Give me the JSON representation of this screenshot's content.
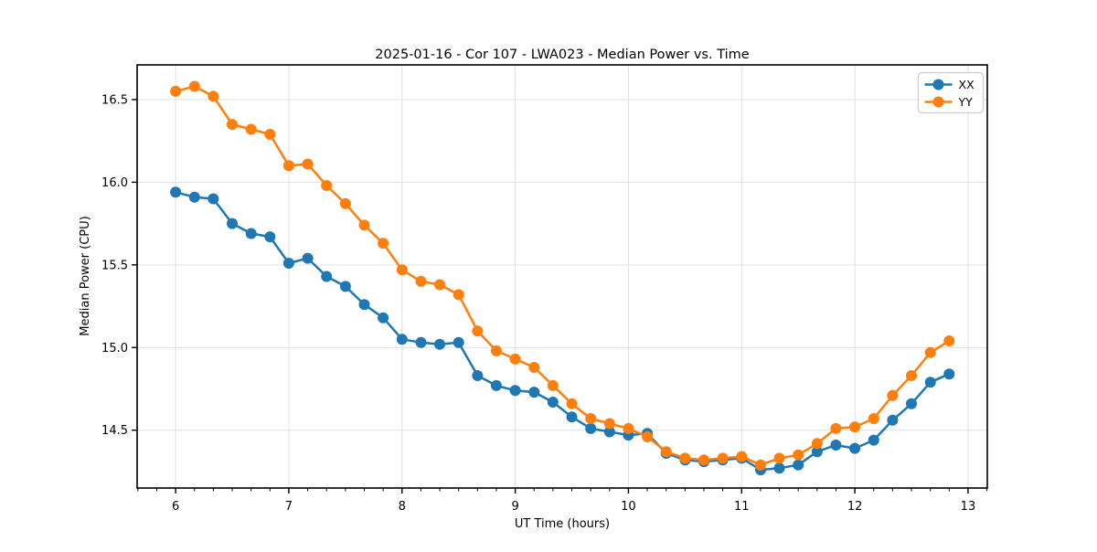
{
  "chart_data": {
    "type": "line",
    "title": "2025-01-16 - Cor 107 - LWA023 - Median Power vs. Time",
    "xlabel": "UT Time (hours)",
    "ylabel": "Median Power (CPU)",
    "xlim": [
      5.66,
      13.17
    ],
    "ylim": [
      14.15,
      16.71
    ],
    "xticks": [
      6,
      7,
      8,
      9,
      10,
      11,
      12,
      13
    ],
    "xtick_labels": [
      "6",
      "7",
      "8",
      "9",
      "10",
      "11",
      "12",
      "13"
    ],
    "yticks": [
      14.5,
      15.0,
      15.5,
      16.0,
      16.5
    ],
    "ytick_labels": [
      "14.5",
      "15.0",
      "15.5",
      "16.0",
      "16.5"
    ],
    "x_minor_step": 0.166667,
    "grid": true,
    "legend_position": "upper right",
    "x": [
      6.0,
      6.167,
      6.333,
      6.5,
      6.667,
      6.833,
      7.0,
      7.167,
      7.333,
      7.5,
      7.667,
      7.833,
      8.0,
      8.167,
      8.333,
      8.5,
      8.667,
      8.833,
      9.0,
      9.167,
      9.333,
      9.5,
      9.667,
      9.833,
      10.0,
      10.167,
      10.333,
      10.5,
      10.667,
      10.833,
      11.0,
      11.167,
      11.333,
      11.5,
      11.667,
      11.833,
      12.0,
      12.167,
      12.333,
      12.5,
      12.667,
      12.833
    ],
    "series": [
      {
        "name": "XX",
        "color": "#1f77b4",
        "values": [
          15.94,
          15.91,
          15.9,
          15.75,
          15.69,
          15.67,
          15.51,
          15.54,
          15.43,
          15.37,
          15.26,
          15.18,
          15.05,
          15.03,
          15.02,
          15.03,
          14.83,
          14.77,
          14.74,
          14.73,
          14.67,
          14.58,
          14.51,
          14.49,
          14.47,
          14.48,
          14.36,
          14.32,
          14.31,
          14.32,
          14.33,
          14.26,
          14.27,
          14.29,
          14.37,
          14.41,
          14.39,
          14.44,
          14.56,
          14.66,
          14.79,
          14.84
        ]
      },
      {
        "name": "YY",
        "color": "#ff7f0e",
        "values": [
          16.55,
          16.58,
          16.52,
          16.35,
          16.32,
          16.29,
          16.1,
          16.11,
          15.98,
          15.87,
          15.74,
          15.63,
          15.47,
          15.4,
          15.38,
          15.32,
          15.1,
          14.98,
          14.93,
          14.88,
          14.77,
          14.66,
          14.57,
          14.54,
          14.51,
          14.46,
          14.37,
          14.33,
          14.32,
          14.33,
          14.34,
          14.29,
          14.33,
          14.35,
          14.42,
          14.51,
          14.52,
          14.57,
          14.71,
          14.83,
          14.97,
          15.04
        ]
      }
    ],
    "style": {
      "grid_color": "#e0e0e0",
      "spine_color": "#000000",
      "tick_color": "#000000",
      "legend_border_color": "#cccccc",
      "legend_bg_color": "#ffffff",
      "marker_radius": 6,
      "line_width": 2.5
    }
  }
}
